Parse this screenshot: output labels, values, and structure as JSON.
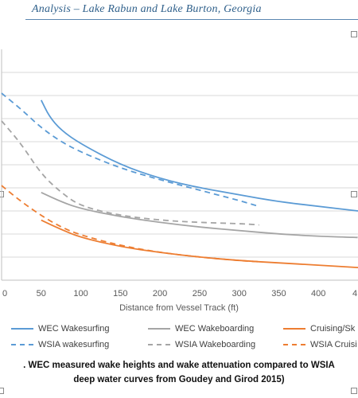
{
  "header": {
    "title": "Analysis – Lake Rabun and Lake Burton, Georgia"
  },
  "chart_data": {
    "type": "line",
    "title": "",
    "xlabel": "Distance from Vessel Track (ft)",
    "ylabel": "",
    "xlim": [
      0,
      450
    ],
    "x_ticks": [
      "0",
      "50",
      "100",
      "150",
      "200",
      "250",
      "300",
      "350",
      "400",
      "4"
    ],
    "ylim": [
      0,
      10
    ],
    "y_gridlines": [
      1,
      2,
      3,
      4,
      5,
      6,
      7,
      8,
      9
    ],
    "grid": true,
    "legend_position": "bottom",
    "series": [
      {
        "name": "WEC Wakesurfing",
        "color": "#5b9bd5",
        "dash": "solid",
        "x": [
          50,
          60,
          75,
          100,
          150,
          200,
          250,
          300,
          350,
          400,
          450
        ],
        "y": [
          7.8,
          7.1,
          6.5,
          5.9,
          5.0,
          4.4,
          4.0,
          3.7,
          3.4,
          3.2,
          3.0
        ]
      },
      {
        "name": "WEC Wakeboarding",
        "color": "#a5a5a5",
        "dash": "solid",
        "x": [
          50,
          75,
          100,
          150,
          200,
          250,
          300,
          350,
          400,
          450
        ],
        "y": [
          3.8,
          3.4,
          3.1,
          2.75,
          2.5,
          2.3,
          2.15,
          2.0,
          1.9,
          1.85
        ]
      },
      {
        "name": "Cruising/Sk",
        "color": "#ed7d31",
        "dash": "solid",
        "x": [
          50,
          75,
          100,
          150,
          200,
          250,
          300,
          350,
          400,
          450
        ],
        "y": [
          2.6,
          2.2,
          1.85,
          1.45,
          1.2,
          1.0,
          0.85,
          0.75,
          0.65,
          0.55
        ]
      },
      {
        "name": "WSIA wakesurfing",
        "color": "#5b9bd5",
        "dash": "dashed",
        "x": [
          0,
          25,
          50,
          75,
          100,
          150,
          200,
          250,
          300,
          325
        ],
        "y": [
          8.1,
          7.4,
          6.6,
          6.0,
          5.55,
          4.85,
          4.35,
          3.9,
          3.45,
          3.2
        ]
      },
      {
        "name": "WSIA Wakeboarding",
        "color": "#a5a5a5",
        "dash": "dashed",
        "x": [
          0,
          25,
          50,
          75,
          100,
          150,
          200,
          250,
          300,
          325
        ],
        "y": [
          6.9,
          5.9,
          4.6,
          3.8,
          3.2,
          2.8,
          2.6,
          2.5,
          2.45,
          2.4
        ]
      },
      {
        "name": "WSIA Cruisi",
        "color": "#ed7d31",
        "dash": "dashed",
        "x": [
          0,
          25,
          50,
          75,
          100,
          150,
          200,
          250,
          300,
          325
        ],
        "y": [
          4.1,
          3.4,
          2.8,
          2.3,
          1.95,
          1.5,
          1.2,
          1.0,
          0.85,
          0.8
        ]
      }
    ]
  },
  "legend": {
    "items": [
      {
        "label": "WEC Wakesurfing",
        "color": "#5b9bd5",
        "dash": "solid"
      },
      {
        "label": "WEC Wakeboarding",
        "color": "#a5a5a5",
        "dash": "solid"
      },
      {
        "label": "Cruising/Sk",
        "color": "#ed7d31",
        "dash": "solid"
      },
      {
        "label": "WSIA wakesurfing",
        "color": "#5b9bd5",
        "dash": "dashed"
      },
      {
        "label": "WSIA Wakeboarding",
        "color": "#a5a5a5",
        "dash": "dashed"
      },
      {
        "label": "WSIA Cruisi",
        "color": "#ed7d31",
        "dash": "dashed"
      }
    ]
  },
  "caption": {
    "line1": ". WEC measured wake heights and wake attenuation compared to WSIA",
    "line2": "deep water curves from Goudey and Girod 2015)"
  }
}
